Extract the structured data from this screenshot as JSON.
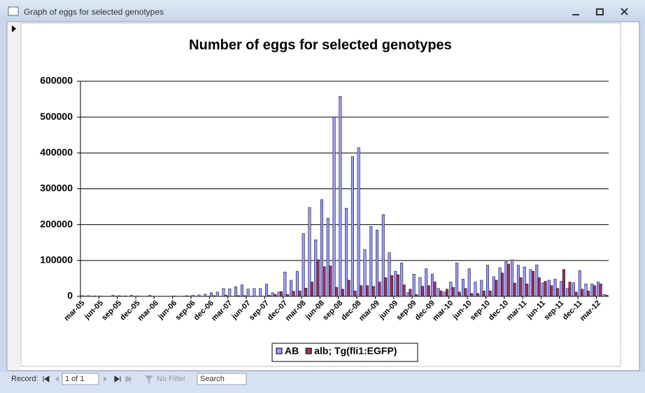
{
  "window": {
    "title": "Graph of eggs for selected genotypes"
  },
  "chart_data": {
    "type": "bar",
    "title": "Number of eggs for selected genotypes",
    "categories": [
      "mar-05",
      null,
      null,
      "jun-05",
      null,
      null,
      "sep-05",
      null,
      null,
      "dec-05",
      null,
      null,
      "mar-06",
      null,
      null,
      "jun-06",
      null,
      null,
      "sep-06",
      null,
      null,
      "dec-06",
      null,
      null,
      "mar-07",
      null,
      null,
      "jun-07",
      null,
      null,
      "sep-07",
      null,
      null,
      "dec-07",
      null,
      null,
      "mar-08",
      null,
      null,
      "jun-08",
      null,
      null,
      "sep-08",
      null,
      null,
      "dec-08",
      null,
      null,
      "mar-09",
      null,
      null,
      "jun-09",
      null,
      null,
      "sep-09",
      null,
      null,
      "dec-09",
      null,
      null,
      "mar-10",
      null,
      null,
      "jun-10",
      null,
      null,
      "sep-10",
      null,
      null,
      "dec-10",
      null,
      null,
      "mar-11",
      null,
      null,
      "jun-11",
      null,
      null,
      "sep-11",
      null,
      null,
      "dec-11",
      null,
      null,
      "mar-12",
      null
    ],
    "series": [
      {
        "name": "AB",
        "color": "#9999ff",
        "values": [
          2000,
          2000,
          1000,
          1000,
          0,
          3000,
          2000,
          1000,
          3000,
          1000,
          0,
          3000,
          0,
          0,
          0,
          1000,
          0,
          2000,
          3000,
          4000,
          6000,
          10000,
          12000,
          22000,
          21000,
          27000,
          32000,
          20000,
          22000,
          22000,
          34000,
          10000,
          12000,
          68000,
          45000,
          70000,
          175000,
          248000,
          158000,
          270000,
          218000,
          500000,
          558000,
          246000,
          390000,
          415000,
          131000,
          195000,
          185000,
          228000,
          122000,
          70000,
          93000,
          10000,
          62000,
          52000,
          77000,
          62000,
          22000,
          12000,
          40000,
          93000,
          48000,
          77000,
          40000,
          45000,
          87000,
          55000,
          80000,
          97000,
          102000,
          87000,
          82000,
          75000,
          88000,
          37000,
          45000,
          48000,
          42000,
          22000,
          38000,
          72000,
          35000,
          35000,
          40000,
          5000
        ]
      },
      {
        "name": "alb; Tg(fli1:EGFP)",
        "color": "#993366",
        "values": [
          0,
          0,
          0,
          0,
          0,
          0,
          0,
          0,
          0,
          0,
          0,
          0,
          0,
          0,
          0,
          0,
          0,
          0,
          0,
          0,
          0,
          2000,
          0,
          3000,
          0,
          2000,
          2000,
          0,
          0,
          0,
          3000,
          5000,
          13000,
          5000,
          14000,
          15000,
          23000,
          40000,
          102000,
          83000,
          85000,
          25000,
          20000,
          45000,
          15000,
          30000,
          30000,
          28000,
          40000,
          52000,
          58000,
          60000,
          32000,
          20000,
          5000,
          28000,
          30000,
          40000,
          15000,
          20000,
          25000,
          12000,
          22000,
          8000,
          8000,
          15000,
          15000,
          45000,
          65000,
          90000,
          37000,
          52000,
          35000,
          70000,
          52000,
          42000,
          30000,
          22000,
          75000,
          40000,
          12000,
          20000,
          15000,
          30000,
          35000,
          3000
        ]
      }
    ],
    "ylim": [
      0,
      600000
    ],
    "yticks": [
      0,
      100000,
      200000,
      300000,
      400000,
      500000,
      600000
    ],
    "grid": true,
    "legend": "bottom"
  },
  "status_bar": {
    "record_label": "Record:",
    "position": "1 of 1",
    "filter": "No Filter",
    "search": "Search"
  }
}
